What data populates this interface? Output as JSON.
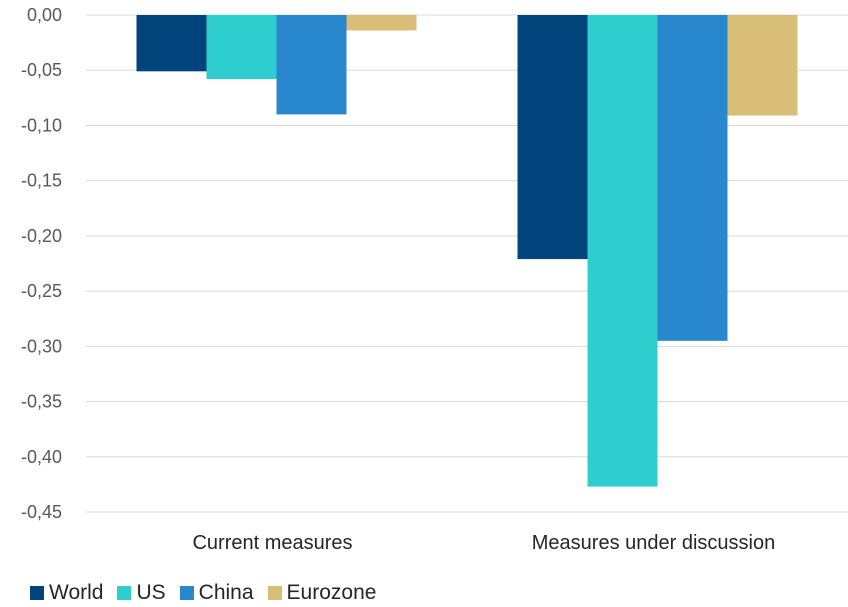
{
  "chart_data": {
    "type": "bar",
    "title": "",
    "xlabel": "",
    "ylabel": "",
    "categories": [
      "Current measures",
      "Measures under discussion"
    ],
    "series": [
      {
        "name": "World",
        "color": "#00447C",
        "values": [
          -0.051,
          -0.221
        ]
      },
      {
        "name": "US",
        "color": "#2ECECE",
        "values": [
          -0.058,
          -0.427
        ]
      },
      {
        "name": "China",
        "color": "#2987CE",
        "values": [
          -0.09,
          -0.295
        ]
      },
      {
        "name": "Eurozone",
        "color": "#D9BE78",
        "values": [
          -0.014,
          -0.091
        ]
      }
    ],
    "ylim": [
      -0.45,
      0.0
    ],
    "yticks": [
      0.0,
      -0.05,
      -0.1,
      -0.15,
      -0.2,
      -0.25,
      -0.3,
      -0.35,
      -0.4,
      -0.45
    ],
    "ytick_labels": [
      "0,00",
      "-0,05",
      "-0,10",
      "-0,15",
      "-0,20",
      "-0,25",
      "-0,30",
      "-0,35",
      "-0,40",
      "-0,45"
    ],
    "grid": true,
    "legend_position": "bottom-left"
  }
}
